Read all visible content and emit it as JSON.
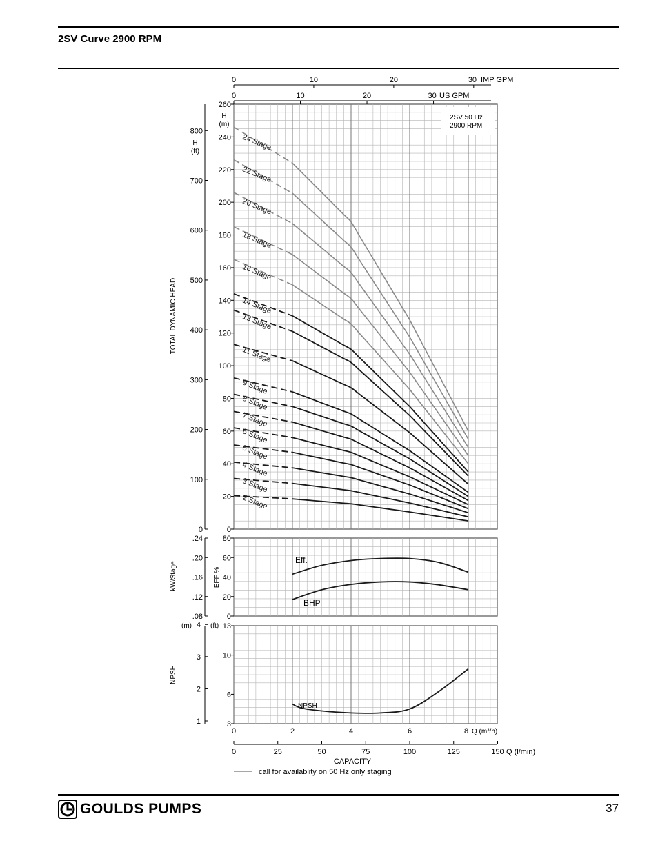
{
  "header": {
    "title": "2SV Curve 2900 RPM"
  },
  "footer": {
    "brand": "GOULDS PUMPS",
    "page_number": "37"
  },
  "chart_data": [
    {
      "id": "head",
      "type": "line",
      "ylabel": "TOTAL DYNAMIC HEAD",
      "y_unit_m": "H (m)",
      "y_unit_ft": "H (ft)",
      "ylim_m": [
        0,
        260
      ],
      "ylim_ft": [
        0,
        853
      ],
      "y_ticks_m": [
        "0",
        "20",
        "40",
        "60",
        "80",
        "100",
        "120",
        "140",
        "160",
        "180",
        "200",
        "220",
        "240",
        "260"
      ],
      "y_ticks_ft": [
        "0",
        "100",
        "200",
        "300",
        "400",
        "500",
        "600",
        "700",
        "800"
      ],
      "x_unit": "Q (m³/h)",
      "xlim": [
        0,
        9
      ],
      "annotation": [
        "2SV  50 Hz",
        "2900 RPM"
      ],
      "series": [
        {
          "name": "2 Stage",
          "gray": false,
          "x": [
            0,
            2,
            4,
            6,
            8
          ],
          "y": [
            20.5,
            18.5,
            15.5,
            10.5,
            5
          ]
        },
        {
          "name": "3 Stage",
          "gray": false,
          "x": [
            0,
            2,
            4,
            6,
            8
          ],
          "y": [
            31,
            28,
            23.5,
            16,
            7.5
          ]
        },
        {
          "name": "4 Stage",
          "gray": false,
          "x": [
            0,
            2,
            4,
            6,
            8
          ],
          "y": [
            41,
            37.5,
            31.5,
            21.5,
            10
          ]
        },
        {
          "name": "5 Stage",
          "gray": false,
          "x": [
            0,
            2,
            4,
            6,
            8
          ],
          "y": [
            51.5,
            47,
            39.5,
            27,
            12.5
          ]
        },
        {
          "name": "6 Stage",
          "gray": false,
          "x": [
            0,
            2,
            4,
            6,
            8
          ],
          "y": [
            62,
            56,
            47,
            32,
            15
          ]
        },
        {
          "name": "7 Stage",
          "gray": false,
          "x": [
            0,
            2,
            4,
            6,
            8
          ],
          "y": [
            72,
            65.5,
            55,
            37.5,
            17.5
          ]
        },
        {
          "name": "8 Stage",
          "gray": false,
          "x": [
            0,
            2,
            4,
            6,
            8
          ],
          "y": [
            82.5,
            75,
            63,
            43,
            20
          ]
        },
        {
          "name": "9 Stage",
          "gray": false,
          "x": [
            0,
            2,
            4,
            6,
            8
          ],
          "y": [
            92.5,
            84,
            70.5,
            48,
            22.5
          ]
        },
        {
          "name": "11 Stage",
          "gray": false,
          "x": [
            0,
            2,
            4,
            6,
            8
          ],
          "y": [
            113,
            103,
            86.5,
            59,
            27.5
          ]
        },
        {
          "name": "13 Stage",
          "gray": false,
          "x": [
            0,
            2,
            4,
            6,
            8
          ],
          "y": [
            134,
            121,
            102,
            69.5,
            32.5
          ]
        },
        {
          "name": "14 Stage",
          "gray": false,
          "x": [
            0,
            2,
            4,
            6,
            8
          ],
          "y": [
            144,
            130.5,
            110,
            75,
            35
          ]
        },
        {
          "name": "16 Stage",
          "gray": true,
          "x": [
            0,
            2,
            4,
            6,
            8
          ],
          "y": [
            165,
            149.5,
            125.5,
            85.5,
            40
          ]
        },
        {
          "name": "18 Stage",
          "gray": true,
          "x": [
            0,
            2,
            4,
            6,
            8
          ],
          "y": [
            185,
            168,
            141,
            96,
            45
          ]
        },
        {
          "name": "20 Stage",
          "gray": true,
          "x": [
            0,
            2,
            4,
            6,
            8
          ],
          "y": [
            206,
            187,
            157,
            107,
            50
          ]
        },
        {
          "name": "22 Stage",
          "gray": true,
          "x": [
            0,
            2,
            4,
            6,
            8
          ],
          "y": [
            226,
            205.5,
            172.5,
            117.5,
            55
          ]
        },
        {
          "name": "24 Stage",
          "gray": true,
          "x": [
            0,
            2,
            4,
            6,
            8
          ],
          "y": [
            246,
            224,
            188,
            128,
            60
          ]
        }
      ]
    },
    {
      "id": "eff",
      "type": "line",
      "ylabel_left": "kW/Stage",
      "ylabel_right": "EFF %",
      "ylim": [
        0,
        80
      ],
      "y_ticks": [
        "0",
        "20",
        "40",
        "60",
        "80"
      ],
      "y_ticks_kw": [
        ".08",
        ".12",
        ".16",
        ".20",
        ".24"
      ],
      "series": [
        {
          "name": "Eff.",
          "x": [
            2,
            3,
            4,
            5,
            6,
            7,
            8
          ],
          "y": [
            43,
            52,
            57,
            59,
            59,
            55,
            45
          ]
        },
        {
          "name": "BHP",
          "x": [
            2,
            3,
            4,
            5,
            6,
            7,
            8
          ],
          "y": [
            17,
            27,
            32.5,
            35,
            35,
            32,
            27
          ]
        }
      ]
    },
    {
      "id": "npsh",
      "type": "line",
      "ylabel": "NPSH",
      "y_unit_m": "(m)",
      "y_unit_ft": "(ft)",
      "ylim_ft": [
        3,
        13
      ],
      "y_ticks_ft": [
        "3",
        "6",
        "10",
        "13"
      ],
      "y_ticks_m": [
        "1",
        "2",
        "3",
        "4"
      ],
      "series": [
        {
          "name": "NPSH",
          "x": [
            2,
            2.3,
            3,
            4,
            5,
            6,
            7,
            8
          ],
          "y": [
            5.0,
            4.6,
            4.3,
            4.1,
            4.1,
            4.5,
            6.3,
            8.6
          ]
        }
      ]
    }
  ],
  "axes": {
    "imp_gpm": {
      "label": "IMP GPM",
      "ticks": [
        "0",
        "10",
        "20",
        "30"
      ]
    },
    "us_gpm": {
      "label": "US GPM",
      "ticks": [
        "0",
        "10",
        "20",
        "30"
      ]
    },
    "m3h": {
      "label": "Q (m³/h)",
      "ticks": [
        "0",
        "2",
        "4",
        "6",
        "8"
      ]
    },
    "lmin": {
      "label": "Q (l/min)",
      "ticks": [
        "0",
        "25",
        "50",
        "75",
        "100",
        "125",
        "150"
      ]
    },
    "capacity_label": "CAPACITY"
  },
  "legend": {
    "text": "call for availablity on 50 Hz only staging"
  },
  "colors": {
    "black_curve": "#1a1a1a",
    "gray_curve": "#8a8a8a",
    "grid": "#b5b5b5"
  }
}
